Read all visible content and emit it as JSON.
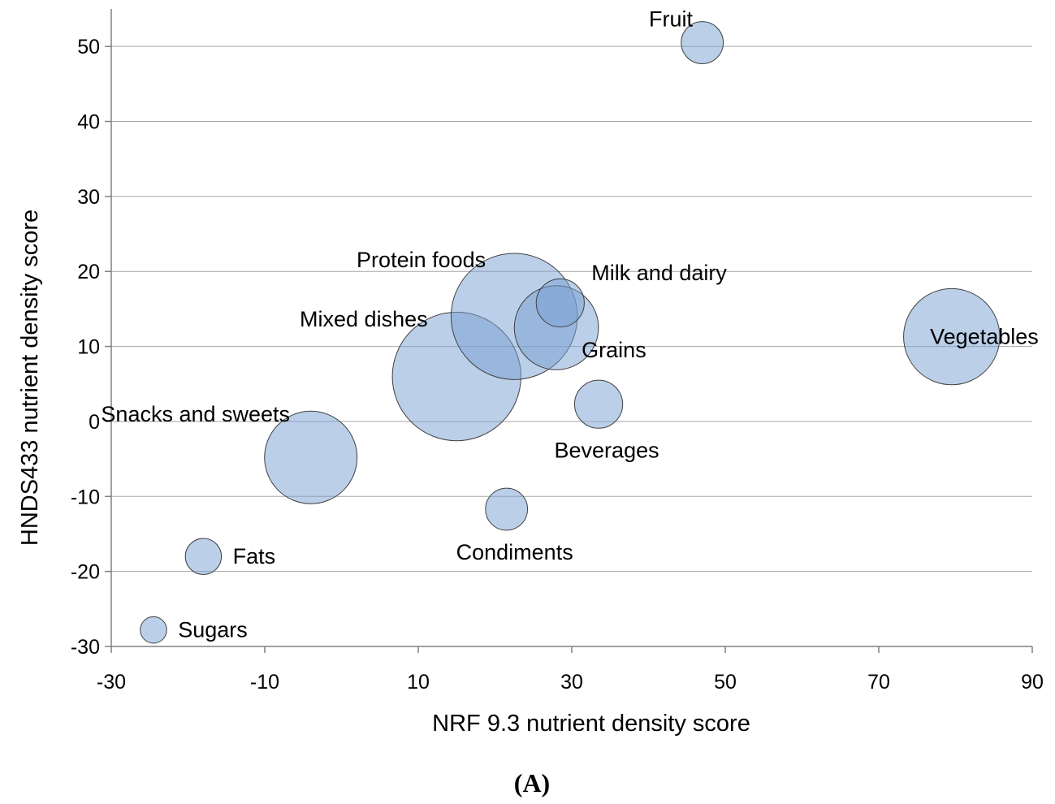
{
  "chart_data": {
    "type": "bubble",
    "xlabel": "NRF 9.3 nutrient density score",
    "ylabel": "HNDS433 nutrient density score",
    "panel_label": "(A)",
    "xlim": [
      -30,
      90
    ],
    "ylim": [
      -30,
      55
    ],
    "xticks": [
      -30,
      -10,
      10,
      30,
      50,
      70,
      90
    ],
    "yticks": [
      -30,
      -20,
      -10,
      0,
      10,
      20,
      30,
      40,
      50
    ],
    "grid": "horizontal",
    "bubble_color": "#78a0d2",
    "points": [
      {
        "label": "Fruit",
        "x": 47,
        "y": 50.5,
        "size": 3.5,
        "label_pos": "upper-left"
      },
      {
        "label": "Protein foods",
        "x": 22.5,
        "y": 14,
        "size": 10.5,
        "label_pos": "upper-left"
      },
      {
        "label": "Milk and dairy",
        "x": 28.5,
        "y": 15.8,
        "size": 4,
        "label_pos": "upper-right"
      },
      {
        "label": "Grains",
        "x": 28,
        "y": 12.5,
        "size": 7,
        "label_pos": "lower-right"
      },
      {
        "label": "Vegetables",
        "x": 79.5,
        "y": 11.3,
        "size": 8,
        "label_pos": "left"
      },
      {
        "label": "Mixed dishes",
        "x": 15,
        "y": 6,
        "size": 10.7,
        "label_pos": "upper-left"
      },
      {
        "label": "Snacks and sweets",
        "x": -4,
        "y": -4.8,
        "size": 7.7,
        "label_pos": "upper-left"
      },
      {
        "label": "Beverages",
        "x": 33.5,
        "y": 2.3,
        "size": 4,
        "label_pos": "below"
      },
      {
        "label": "Condiments",
        "x": 21.5,
        "y": -11.7,
        "size": 3.5,
        "label_pos": "below"
      },
      {
        "label": "Fats",
        "x": -18,
        "y": -18,
        "size": 3,
        "label_pos": "right"
      },
      {
        "label": "Sugars",
        "x": -24.5,
        "y": -27.8,
        "size": 2.2,
        "label_pos": "right"
      }
    ]
  }
}
